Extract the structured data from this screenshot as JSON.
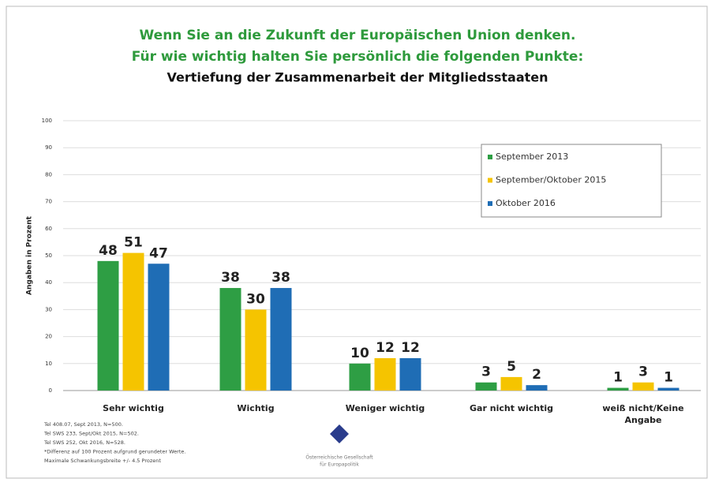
{
  "chart_data": {
    "type": "bar",
    "title": [
      "Wenn Sie an die Zukunft der Europäischen Union denken.",
      "Für wie wichtig halten Sie persönlich die folgenden Punkte:"
    ],
    "subtitle": "Vertiefung der Zusammenarbeit der Mitgliedsstaaten",
    "y_label": "Angaben in Prozent",
    "categories": [
      "Sehr wichtig",
      "Wichtig",
      "Weniger wichtig",
      "Gar nicht wichtig",
      "weiß nicht/Keine Angabe"
    ],
    "series": [
      {
        "name": "September 2013",
        "color": "#2e9e44",
        "values": [
          48,
          38,
          10,
          3,
          1
        ]
      },
      {
        "name": "September/Oktober 2015",
        "color": "#f5c400",
        "values": [
          51,
          30,
          12,
          5,
          3
        ]
      },
      {
        "name": "Oktober 2016",
        "color": "#1f6db5",
        "values": [
          47,
          38,
          12,
          2,
          1
        ]
      }
    ],
    "ylim": [
      0,
      100
    ],
    "yticks": [
      0,
      10,
      20,
      30,
      40,
      50,
      60,
      70,
      80,
      90,
      100
    ],
    "grid": true,
    "legend": "upper right",
    "notes": [
      "Tel 408.07, Sept 2013, N=500.",
      "Tel SWS 233, Sept/Okt 2015, N=502.",
      "Tel SWS 252, Okt 2016, N=528.",
      "*Differenz auf 100 Prozent aufgrund gerundeter Werte.",
      "Maximale Schwankungsbreite +/- 4.5 Prozent"
    ],
    "logo_text": [
      "Österreichische Gesellschaft",
      "für Europapolitik"
    ]
  }
}
